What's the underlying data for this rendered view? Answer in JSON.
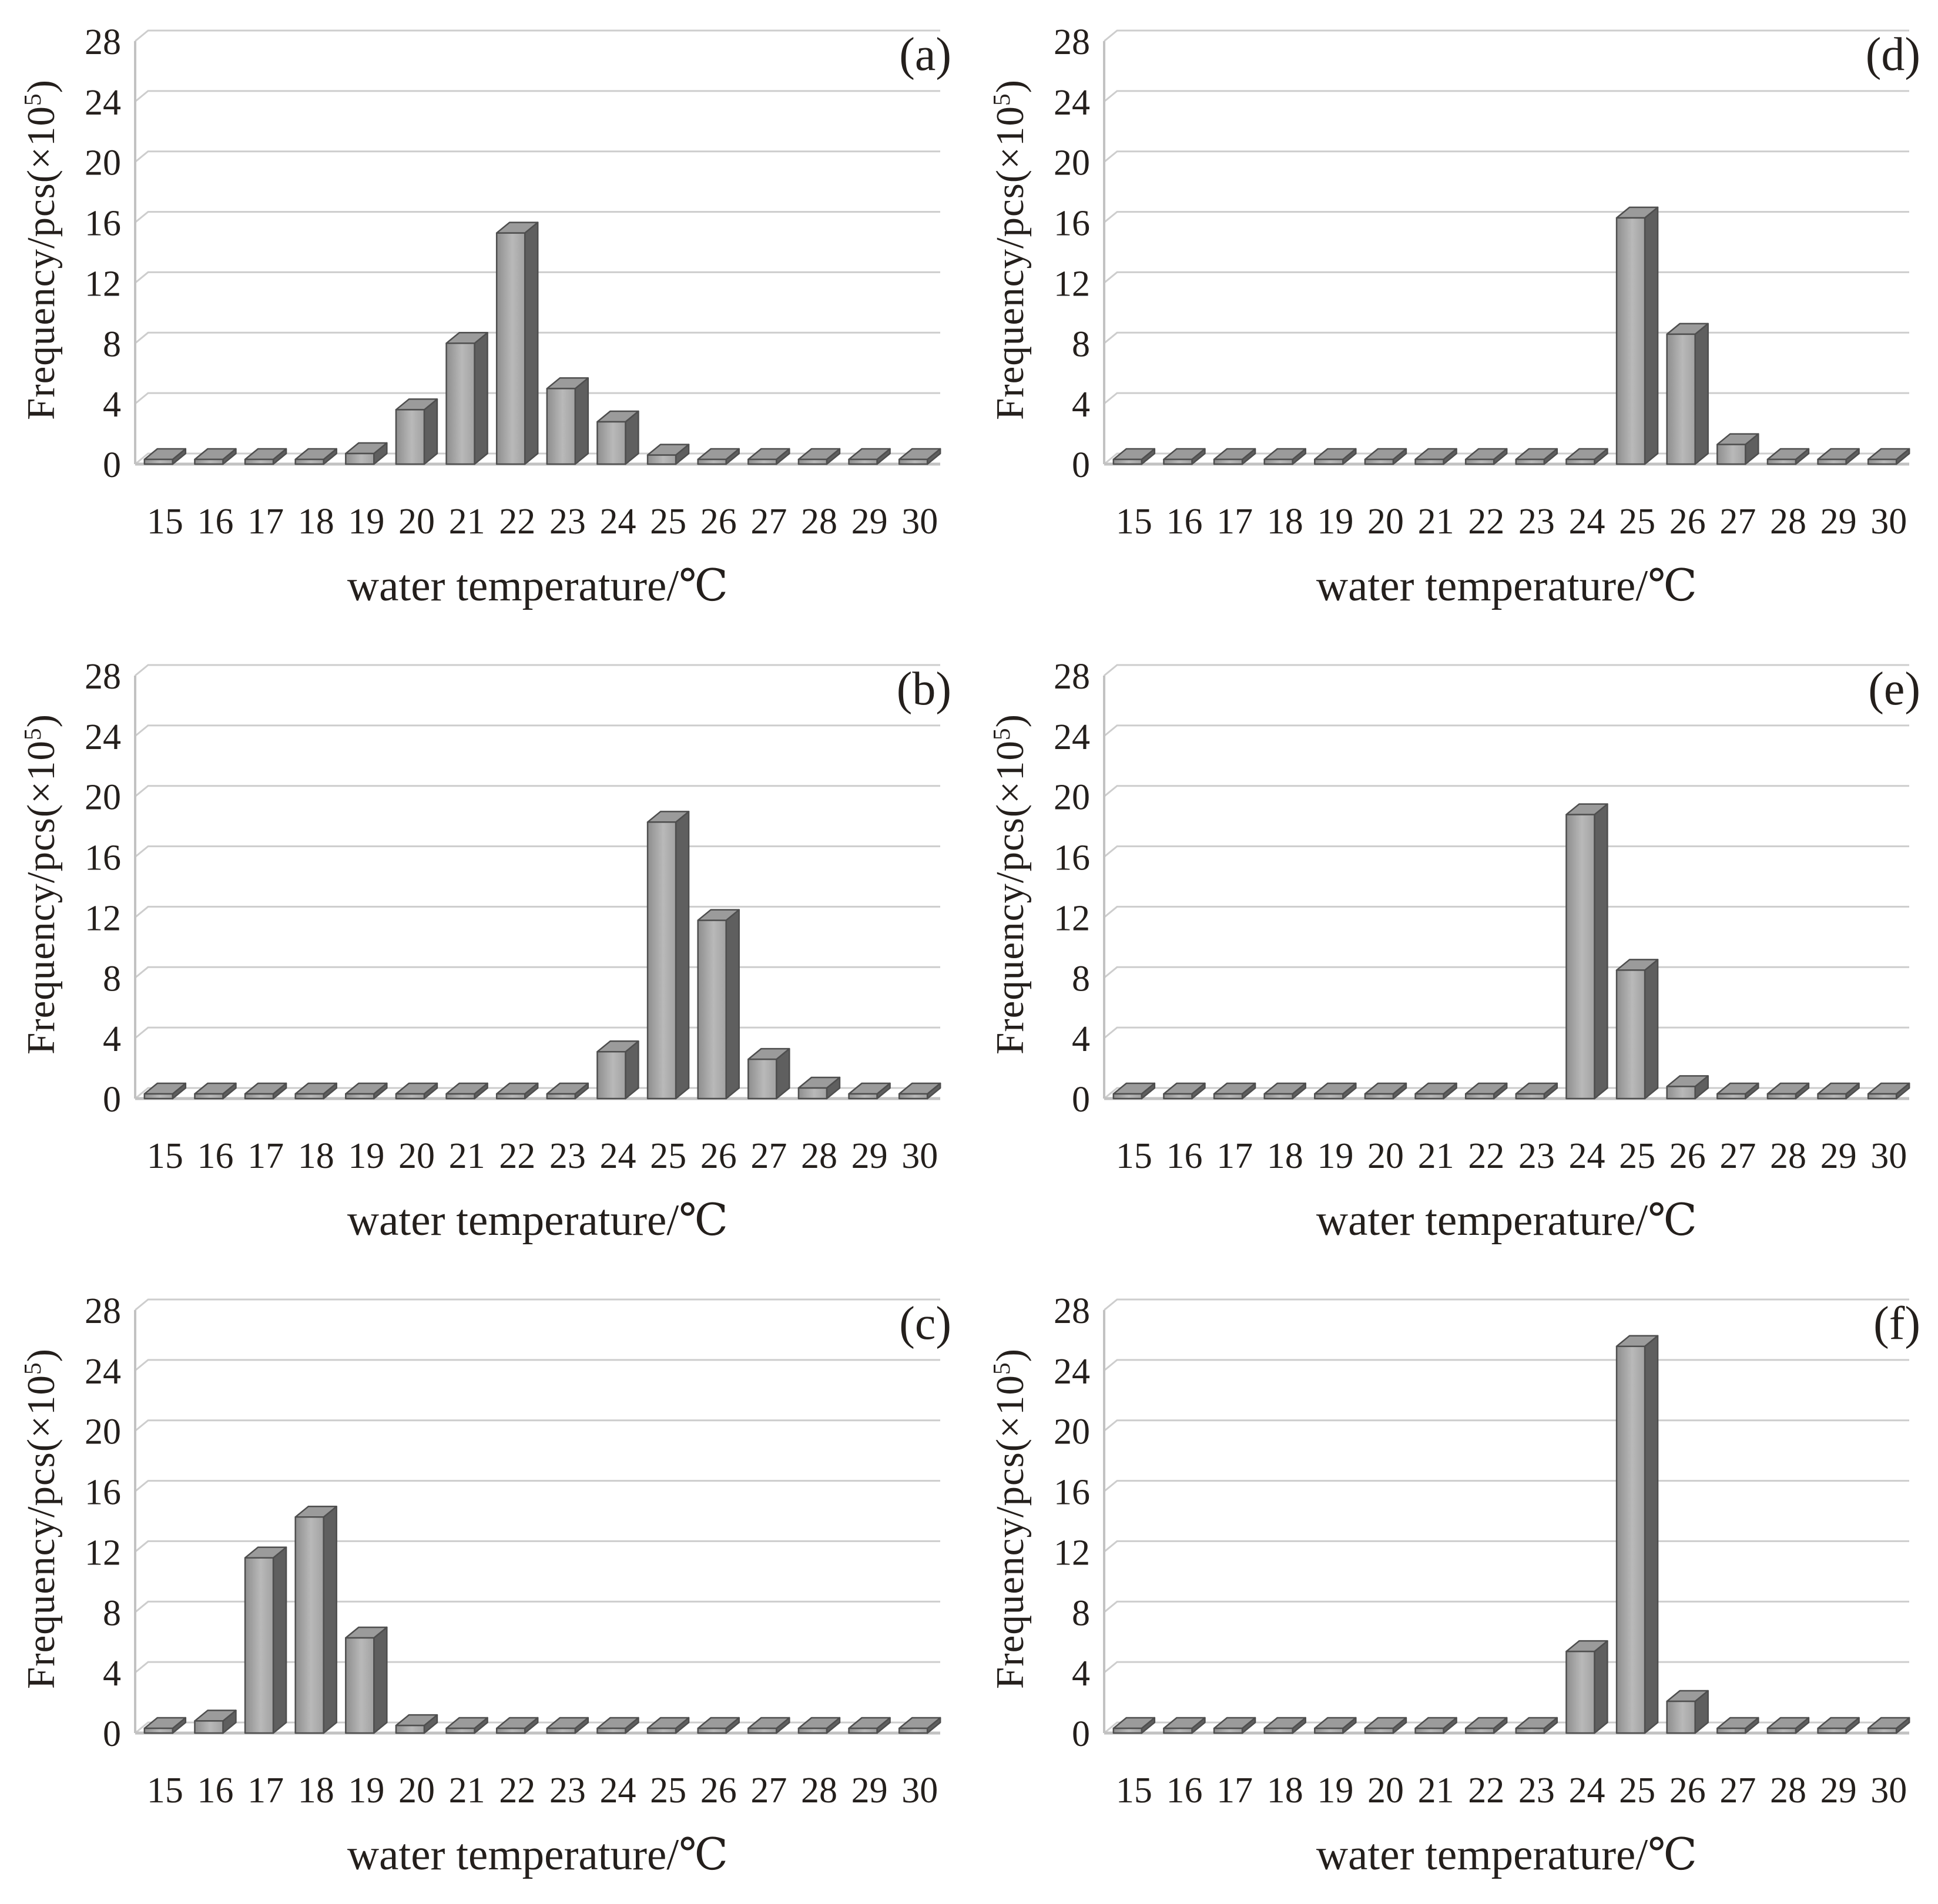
{
  "style": {
    "grid_color": "#cdcdcd",
    "axis_color": "#c2c2c2",
    "bar_stroke": "#4e4e4e",
    "bar_front_dark": "#8e8e8e",
    "bar_front_light": "#b9b9b9",
    "bar_front_mid": "#a2a2a2",
    "bar_top": "#9b9b9b",
    "bar_side": "#5f5f5f",
    "text_color": "#241f1c"
  },
  "chart_data": [
    {
      "type": "bar",
      "panel": "(a)",
      "categories": [
        "15",
        "16",
        "17",
        "18",
        "19",
        "20",
        "21",
        "22",
        "23",
        "24",
        "25",
        "26",
        "27",
        "28",
        "29",
        "30"
      ],
      "values": [
        0,
        0,
        0,
        0.2,
        0.7,
        3.6,
        8.0,
        15.3,
        5.0,
        2.8,
        0.6,
        0,
        0,
        0,
        0,
        0
      ],
      "xlabel": "water temperature/℃",
      "ylabel_prefix": "Frequency/pcs(×10",
      "ylabel_sup": "5",
      "ylabel_suffix": ")",
      "ylim": [
        0,
        28
      ],
      "ytick_step": 4,
      "grid": true,
      "legend": "none"
    },
    {
      "type": "bar",
      "panel": "(b)",
      "categories": [
        "15",
        "16",
        "17",
        "18",
        "19",
        "20",
        "21",
        "22",
        "23",
        "24",
        "25",
        "26",
        "27",
        "28",
        "29",
        "30"
      ],
      "values": [
        0,
        0,
        0,
        0,
        0,
        0,
        0,
        0,
        0.1,
        3.1,
        18.3,
        11.8,
        2.6,
        0.7,
        0.2,
        0.1
      ],
      "xlabel": "water temperature/℃",
      "ylabel_prefix": "Frequency/pcs(×10",
      "ylabel_sup": "5",
      "ylabel_suffix": ")",
      "ylim": [
        0,
        28
      ],
      "ytick_step": 4,
      "grid": true,
      "legend": "none"
    },
    {
      "type": "bar",
      "panel": "(c)",
      "categories": [
        "15",
        "16",
        "17",
        "18",
        "19",
        "20",
        "21",
        "22",
        "23",
        "24",
        "25",
        "26",
        "27",
        "28",
        "29",
        "30"
      ],
      "values": [
        0,
        0.8,
        11.6,
        14.3,
        6.3,
        0.5,
        0,
        0,
        0,
        0,
        0,
        0,
        0,
        0,
        0,
        0
      ],
      "xlabel": "water temperature/℃",
      "ylabel_prefix": "Frequency/pcs(×10",
      "ylabel_sup": "5",
      "ylabel_suffix": ")",
      "ylim": [
        0,
        28
      ],
      "ytick_step": 4,
      "grid": true,
      "legend": "none"
    },
    {
      "type": "bar",
      "panel": "(d)",
      "categories": [
        "15",
        "16",
        "17",
        "18",
        "19",
        "20",
        "21",
        "22",
        "23",
        "24",
        "25",
        "26",
        "27",
        "28",
        "29",
        "30"
      ],
      "values": [
        0,
        0,
        0,
        0,
        0,
        0,
        0,
        0,
        0.15,
        0.3,
        16.3,
        8.6,
        1.3,
        0,
        0,
        0
      ],
      "xlabel": "water temperature/℃",
      "ylabel_prefix": "Frequency/pcs(×10",
      "ylabel_sup": "5",
      "ylabel_suffix": ")",
      "ylim": [
        0,
        28
      ],
      "ytick_step": 4,
      "grid": true,
      "legend": "none"
    },
    {
      "type": "bar",
      "panel": "(e)",
      "categories": [
        "15",
        "16",
        "17",
        "18",
        "19",
        "20",
        "21",
        "22",
        "23",
        "24",
        "25",
        "26",
        "27",
        "28",
        "29",
        "30"
      ],
      "values": [
        0,
        0,
        0,
        0,
        0,
        0,
        0,
        0,
        0,
        18.8,
        8.5,
        0.8,
        0.1,
        0,
        0,
        0
      ],
      "xlabel": "water temperature/℃",
      "ylabel_prefix": "Frequency/pcs(×10",
      "ylabel_sup": "5",
      "ylabel_suffix": ")",
      "ylim": [
        0,
        28
      ],
      "ytick_step": 4,
      "grid": true,
      "legend": "none"
    },
    {
      "type": "bar",
      "panel": "(f)",
      "categories": [
        "15",
        "16",
        "17",
        "18",
        "19",
        "20",
        "21",
        "22",
        "23",
        "24",
        "25",
        "26",
        "27",
        "28",
        "29",
        "30"
      ],
      "values": [
        0,
        0,
        0,
        0,
        0,
        0,
        0,
        0,
        0.15,
        5.4,
        25.6,
        2.1,
        0.3,
        0,
        0,
        0
      ],
      "xlabel": "water temperature/℃",
      "ylabel_prefix": "Frequency/pcs(×10",
      "ylabel_sup": "5",
      "ylabel_suffix": ")",
      "ylim": [
        0,
        28
      ],
      "ytick_step": 4,
      "grid": true,
      "legend": "none"
    }
  ]
}
